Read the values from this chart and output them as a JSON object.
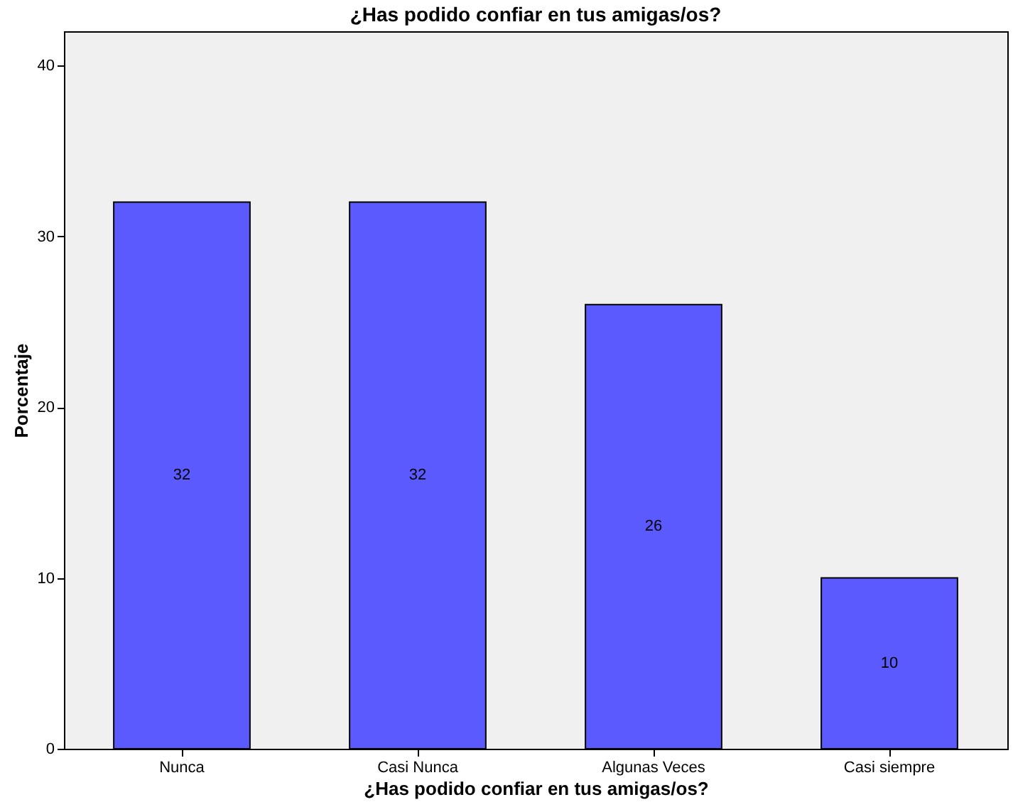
{
  "chart_data": {
    "type": "bar",
    "title": "¿Has podido confiar en tus amigas/os?",
    "xlabel": "¿Has podido confiar en tus amigas/os?",
    "ylabel": "Porcentaje",
    "categories": [
      "Nunca",
      "Casi Nunca",
      "Algunas Veces",
      "Casi siempre"
    ],
    "values": [
      32,
      32,
      26,
      10
    ],
    "color": "#5a5aff",
    "ylim": [
      0,
      42
    ],
    "yticks": [
      0,
      10,
      20,
      30,
      40
    ],
    "data_labels": true,
    "grid": false
  }
}
